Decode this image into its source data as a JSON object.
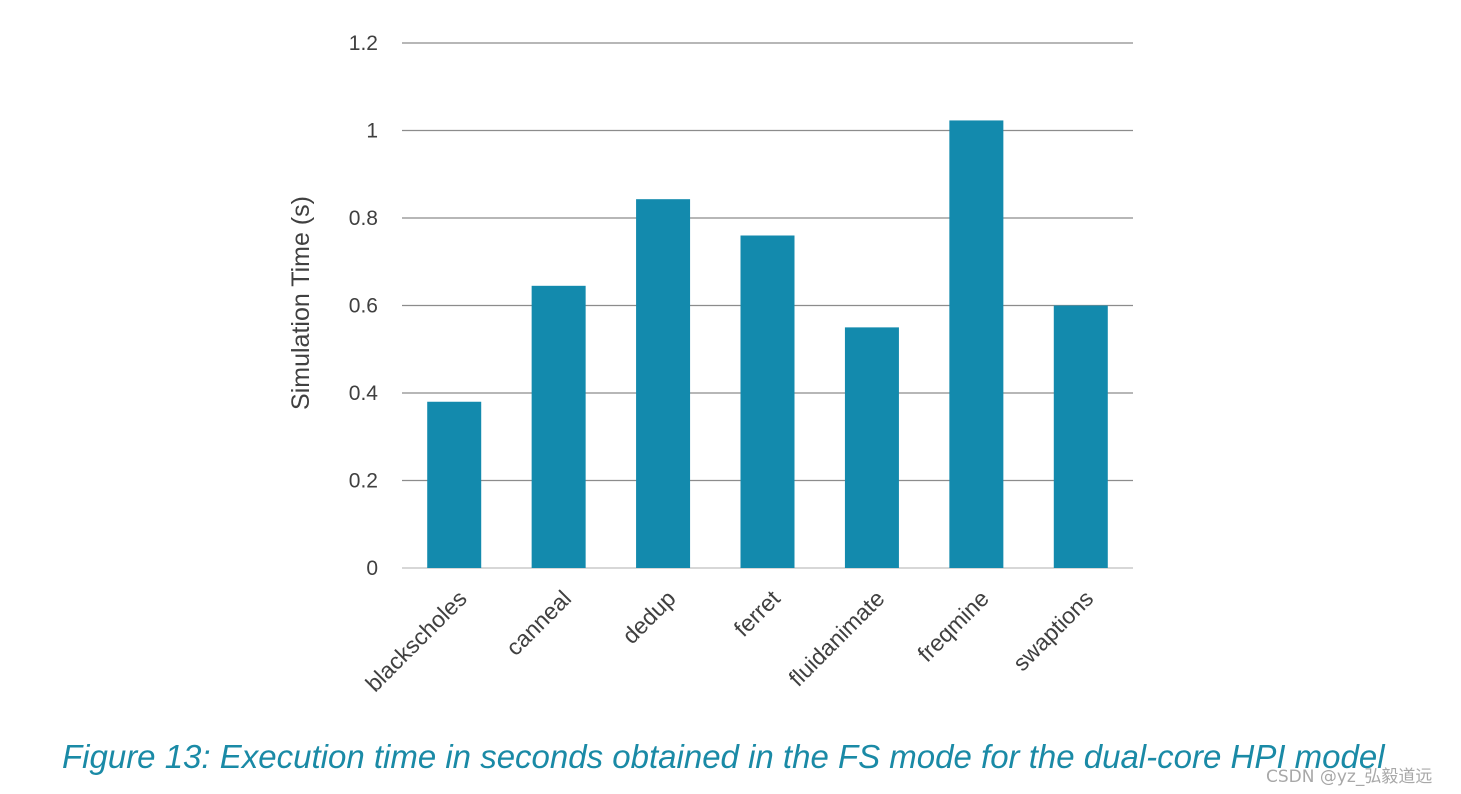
{
  "chart_data": {
    "type": "bar",
    "title": "",
    "xlabel": "",
    "ylabel": "Simulation Time (s)",
    "ylim": [
      0,
      1.2
    ],
    "yticks": [
      "0",
      "0.2",
      "0.4",
      "0.6",
      "0.8",
      "1",
      "1.2"
    ],
    "grid": true,
    "categories": [
      "blackscholes",
      "canneal",
      "dedup",
      "ferret",
      "fluidanimate",
      "freqmine",
      "swaptions"
    ],
    "values": [
      0.38,
      0.645,
      0.843,
      0.76,
      0.55,
      1.023,
      0.6
    ],
    "bar_color": "#138aad"
  },
  "caption": "Figure 13: Execution time in seconds obtained in the FS mode for the dual-core HPI model",
  "watermark": "CSDN @yz_弘毅道远"
}
